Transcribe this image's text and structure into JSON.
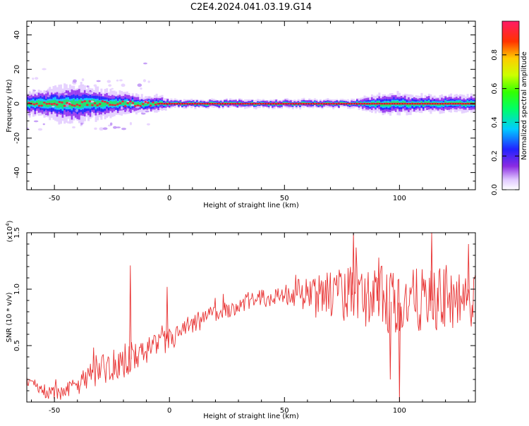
{
  "title": "C2E4.2024.041.03.19.G14",
  "colors": {
    "snr_line": "#e83232",
    "ridge": "#e8283c",
    "axis": "#000000"
  },
  "chart_data": [
    {
      "type": "heatmap",
      "title": "C2E4.2024.041.03.19.G14",
      "xlabel": "Height of straight line (km)",
      "ylabel": "Frequency (Hz)",
      "xlim": [
        -62,
        133
      ],
      "ylim": [
        -50,
        48
      ],
      "xticks": [
        -50,
        0,
        50,
        100
      ],
      "xtick_labels": [
        "-50",
        "0",
        "50",
        "100"
      ],
      "yticks": [
        -40,
        -20,
        0,
        20,
        40
      ],
      "ytick_labels": [
        "-40",
        "-20",
        "0",
        "20",
        "40"
      ],
      "colorbar": {
        "label": "Normalized spectral amplitude",
        "range": [
          0,
          1
        ],
        "ticks": [
          0.0,
          0.2,
          0.4,
          0.6,
          0.8
        ],
        "tick_labels": [
          "0.0",
          "0.2",
          "0.4",
          "0.6",
          "0.8"
        ]
      },
      "band_halfwidth_hz": [
        [
          -62,
          4
        ],
        [
          -50,
          6
        ],
        [
          -40,
          7
        ],
        [
          -30,
          5
        ],
        [
          -20,
          4
        ],
        [
          -12,
          3
        ],
        [
          -6,
          3
        ],
        [
          0,
          1.5
        ],
        [
          40,
          1.5
        ],
        [
          80,
          1.5
        ],
        [
          85,
          2.5
        ],
        [
          95,
          4
        ],
        [
          110,
          3
        ],
        [
          133,
          3
        ]
      ],
      "ridge_frequency_hz": 0
    },
    {
      "type": "line",
      "xlabel": "Height of straight line (km)",
      "ylabel": "SNR (10 * v/v)",
      "multiplier_label": "(x10",
      "multiplier_exp": "4",
      "multiplier_close": ")",
      "xlim": [
        -62,
        133
      ],
      "ylim": [
        0,
        1.5
      ],
      "xticks": [
        -50,
        0,
        50,
        100
      ],
      "xtick_labels": [
        "-50",
        "0",
        "50",
        "100"
      ],
      "yticks": [
        0.5,
        1.0,
        1.5
      ],
      "ytick_labels": [
        "0.5",
        "1.0",
        "1.5"
      ],
      "envelope_mean": [
        [
          -62,
          0.2
        ],
        [
          -55,
          0.1
        ],
        [
          -48,
          0.07
        ],
        [
          -40,
          0.15
        ],
        [
          -30,
          0.3
        ],
        [
          -20,
          0.35
        ],
        [
          -10,
          0.45
        ],
        [
          0,
          0.55
        ],
        [
          10,
          0.68
        ],
        [
          20,
          0.78
        ],
        [
          30,
          0.86
        ],
        [
          40,
          0.92
        ],
        [
          50,
          0.95
        ],
        [
          60,
          0.97
        ],
        [
          70,
          0.95
        ],
        [
          80,
          0.95
        ],
        [
          90,
          0.9
        ],
        [
          100,
          0.88
        ],
        [
          110,
          0.9
        ],
        [
          120,
          0.9
        ],
        [
          133,
          0.9
        ]
      ],
      "envelope_noise": [
        [
          -62,
          0.06
        ],
        [
          -40,
          0.08
        ],
        [
          -30,
          0.15
        ],
        [
          -10,
          0.12
        ],
        [
          20,
          0.08
        ],
        [
          45,
          0.08
        ],
        [
          65,
          0.18
        ],
        [
          80,
          0.28
        ],
        [
          100,
          0.3
        ],
        [
          133,
          0.25
        ]
      ],
      "spikes": [
        [
          -17,
          1.21
        ],
        [
          -1,
          1.02
        ],
        [
          80,
          1.5
        ],
        [
          100,
          0.0
        ],
        [
          96,
          0.2
        ],
        [
          114,
          1.5
        ],
        [
          130,
          1.4
        ],
        [
          91,
          1.28
        ]
      ]
    }
  ]
}
